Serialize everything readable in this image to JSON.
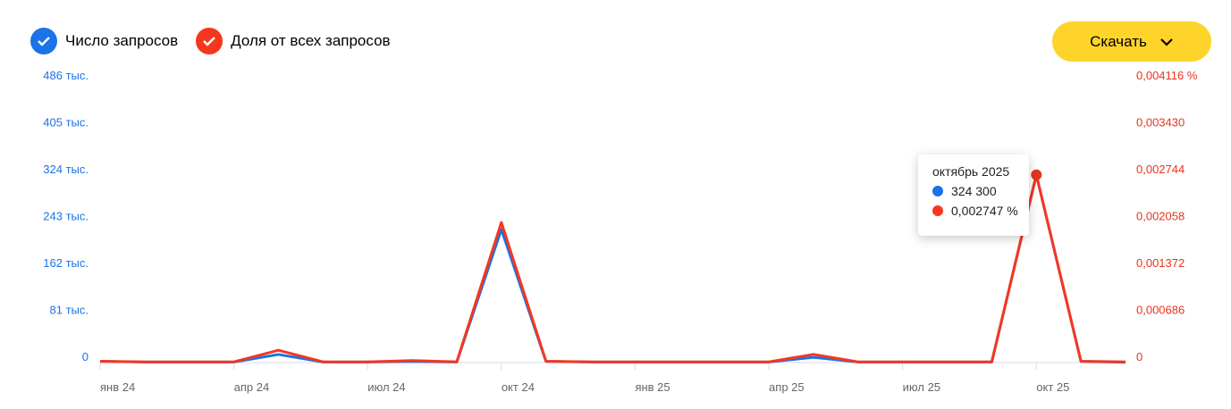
{
  "legend": [
    {
      "label": "Число запросов",
      "color": "#1a73e8",
      "checked": true
    },
    {
      "label": "Доля от всех запросов",
      "color": "#f5371f",
      "checked": true
    }
  ],
  "download": {
    "label": "Скачать",
    "icon": "chevron-down-icon"
  },
  "tooltip": {
    "title": "октябрь 2025",
    "count": "324 300",
    "share": "0,002747 %"
  },
  "chart_data": {
    "type": "line",
    "categories": [
      "2024-01",
      "2024-02",
      "2024-03",
      "2024-04",
      "2024-05",
      "2024-06",
      "2024-07",
      "2024-08",
      "2024-09",
      "2024-10",
      "2024-11",
      "2024-12",
      "2025-01",
      "2025-02",
      "2025-03",
      "2025-04",
      "2025-05",
      "2025-06",
      "2025-07",
      "2025-08",
      "2025-09",
      "2025-10",
      "2025-11",
      "2025-12"
    ],
    "x_tick_labels": [
      "янв 24",
      "апр 24",
      "июл 24",
      "окт 24",
      "янв 25",
      "апр 25",
      "июл 25",
      "окт 25"
    ],
    "y_left_ticks": [
      "0",
      "81 тыс.",
      "162 тыс.",
      "243 тыс.",
      "324 тыс.",
      "405 тыс.",
      "486 тыс."
    ],
    "y_right_ticks": [
      "0",
      "0,000686",
      "0,001372",
      "0,002058",
      "0,002744",
      "0,003430",
      "0,004116 %"
    ],
    "ylim_left": [
      0,
      486000
    ],
    "ylim_right": [
      0,
      0.004116
    ],
    "series": [
      {
        "name": "Число запросов",
        "axis": "left",
        "color": "#1a73e8",
        "values": [
          2000,
          1000,
          1000,
          1000,
          14000,
          1000,
          1000,
          2000,
          1000,
          230000,
          2000,
          1000,
          1000,
          1000,
          1000,
          1000,
          9000,
          1000,
          1000,
          1000,
          1000,
          324300,
          2000,
          500
        ]
      },
      {
        "name": "Доля от всех запросов",
        "axis": "right",
        "color": "#f5371f",
        "values": [
          2e-05,
          1e-05,
          1e-05,
          1e-05,
          0.00018,
          1e-05,
          1e-05,
          3e-05,
          1e-05,
          0.00205,
          2e-05,
          1e-05,
          1e-05,
          1e-05,
          1e-05,
          1e-05,
          0.00012,
          1e-05,
          1e-05,
          1e-05,
          1e-05,
          0.002747,
          2e-05,
          1e-05
        ]
      }
    ],
    "highlighted": "2025-10"
  }
}
